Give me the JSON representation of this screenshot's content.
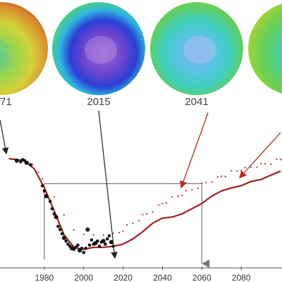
{
  "globes": [
    {
      "label": "1971"
    },
    {
      "label": "2015"
    },
    {
      "label": "2041"
    },
    {
      "label": ""
    }
  ],
  "colors": {
    "trend": "#a0201e",
    "observed": "#111111",
    "modeled": "#b52a22",
    "reference": "#777777",
    "arrow_observed": "#222222",
    "arrow_modeled": "#b52a22"
  },
  "chart_data": {
    "type": "scatter",
    "title": "",
    "xlabel": "",
    "ylabel": "",
    "xlim": [
      1960,
      2100
    ],
    "ylim": [
      0,
      100
    ],
    "x_ticks": [
      "1980",
      "2000",
      "2020",
      "2040",
      "2060",
      "2080"
    ],
    "grid": false,
    "reference": {
      "baseline_year": 1980,
      "recovery_year": 2060,
      "level": 74
    },
    "series": [
      {
        "kind": "observed",
        "points": [
          [
            1966,
            96
          ],
          [
            1968,
            95
          ],
          [
            1969,
            97
          ],
          [
            1970,
            96
          ],
          [
            1971,
            94
          ],
          [
            1973,
            92
          ],
          [
            1979,
            72
          ],
          [
            1980,
            67
          ],
          [
            1981,
            62
          ],
          [
            1983,
            57
          ],
          [
            1984,
            50
          ],
          [
            1985,
            45
          ],
          [
            1986,
            42
          ],
          [
            1987,
            33
          ],
          [
            1988,
            30
          ],
          [
            1989,
            26
          ],
          [
            1990,
            22
          ],
          [
            1991,
            19
          ],
          [
            1992,
            16
          ],
          [
            1993,
            14
          ],
          [
            1994,
            12
          ],
          [
            1995,
            11
          ],
          [
            1996,
            13
          ],
          [
            1997,
            15
          ],
          [
            1998,
            10
          ],
          [
            1999,
            12
          ],
          [
            2000,
            8
          ],
          [
            2001,
            12
          ],
          [
            2002,
            30
          ],
          [
            2003,
            15
          ],
          [
            2004,
            20
          ],
          [
            2005,
            16
          ],
          [
            2006,
            17
          ],
          [
            2007,
            19
          ],
          [
            2008,
            14
          ],
          [
            2009,
            18
          ],
          [
            2010,
            19
          ],
          [
            2011,
            16
          ],
          [
            2012,
            21
          ],
          [
            2013,
            24
          ],
          [
            2014,
            18
          ],
          [
            2015,
            14
          ]
        ]
      },
      {
        "kind": "modeled",
        "points": [
          [
            1974,
            91
          ],
          [
            1977,
            85
          ],
          [
            1979,
            80
          ],
          [
            1985,
            60
          ],
          [
            1990,
            44
          ],
          [
            1995,
            31
          ],
          [
            2000,
            24
          ],
          [
            2005,
            25
          ],
          [
            2010,
            26
          ],
          [
            2015,
            25
          ],
          [
            2018,
            27
          ],
          [
            2020,
            30
          ],
          [
            2022,
            33
          ],
          [
            2025,
            36
          ],
          [
            2028,
            40
          ],
          [
            2030,
            43
          ],
          [
            2032,
            45
          ],
          [
            2035,
            48
          ],
          [
            2038,
            52
          ],
          [
            2040,
            55
          ],
          [
            2042,
            57
          ],
          [
            2045,
            60
          ],
          [
            2048,
            62
          ],
          [
            2050,
            64
          ],
          [
            2052,
            66
          ],
          [
            2055,
            68
          ],
          [
            2058,
            71
          ],
          [
            2060,
            73
          ],
          [
            2062,
            75
          ],
          [
            2065,
            77
          ],
          [
            2068,
            79
          ],
          [
            2070,
            81
          ],
          [
            2072,
            82
          ],
          [
            2075,
            85
          ],
          [
            2078,
            86
          ],
          [
            2080,
            88
          ],
          [
            2082,
            88
          ],
          [
            2085,
            90
          ],
          [
            2088,
            91
          ],
          [
            2090,
            92
          ],
          [
            2092,
            93
          ],
          [
            2095,
            94
          ],
          [
            2098,
            96
          ],
          [
            2100,
            97
          ]
        ]
      },
      {
        "kind": "trend",
        "points": [
          [
            1962,
            98
          ],
          [
            1970,
            96
          ],
          [
            1975,
            88
          ],
          [
            1980,
            70
          ],
          [
            1985,
            48
          ],
          [
            1990,
            25
          ],
          [
            1995,
            13
          ],
          [
            2000,
            11
          ],
          [
            2005,
            13
          ],
          [
            2010,
            13
          ],
          [
            2015,
            14
          ],
          [
            2020,
            16
          ],
          [
            2025,
            21
          ],
          [
            2030,
            28
          ],
          [
            2035,
            36
          ],
          [
            2040,
            41
          ],
          [
            2045,
            42
          ],
          [
            2050,
            45
          ],
          [
            2055,
            50
          ],
          [
            2060,
            55
          ],
          [
            2065,
            62
          ],
          [
            2070,
            67
          ],
          [
            2075,
            70
          ],
          [
            2080,
            72
          ],
          [
            2085,
            76
          ],
          [
            2090,
            78
          ],
          [
            2095,
            82
          ],
          [
            2100,
            86
          ]
        ]
      }
    ]
  }
}
